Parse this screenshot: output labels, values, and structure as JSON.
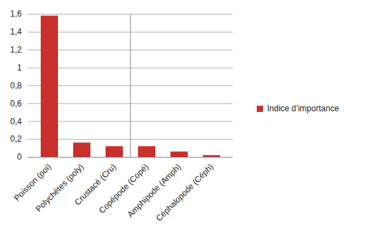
{
  "chart_data": {
    "type": "bar",
    "categories": [
      "Poisson (poi)",
      "Polychètes (poly)",
      "Crustacé (Cru)",
      "Copépode (Copé)",
      "Amphipode (Amph)",
      "Céphalopode (Céph)"
    ],
    "series": [
      {
        "name": "Indice d’importance",
        "color": "#c8302c",
        "values": [
          1.58,
          0.16,
          0.12,
          0.12,
          0.06,
          0.02
        ]
      }
    ],
    "ylim": [
      0,
      1.6
    ],
    "yticks": [
      0,
      {
        "value": 0.2,
        "label": "0,2"
      },
      {
        "value": 0.4,
        "label": "0,4"
      },
      {
        "value": 0.6,
        "label": "0,6"
      },
      {
        "value": 0.8,
        "label": "0,8"
      },
      1,
      {
        "value": 1.2,
        "label": "1,2"
      },
      {
        "value": 1.4,
        "label": "1,4"
      },
      {
        "value": 1.6,
        "label": "1,6"
      }
    ],
    "grid": true,
    "legend": "right"
  }
}
